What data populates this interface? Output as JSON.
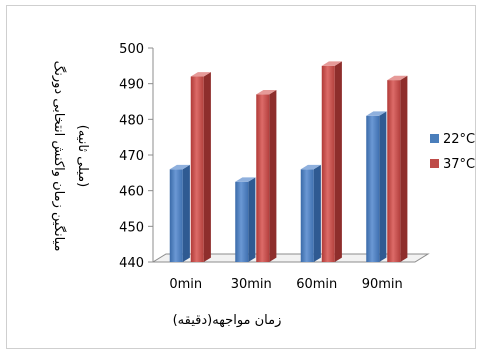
{
  "chart_data": {
    "type": "bar",
    "style": "3d-clustered-column",
    "categories": [
      "0min",
      "30min",
      "60min",
      "90min"
    ],
    "series": [
      {
        "name": "22°C",
        "color": "#4a7ebb",
        "values": [
          466,
          462.5,
          466,
          481
        ]
      },
      {
        "name": "37°C",
        "color": "#be4b48",
        "values": [
          492,
          487,
          495,
          491
        ]
      }
    ],
    "xlabel": "زمان مواجهه(دقیقه)",
    "ylabel": "میانگین زمان واکنش انتخابی دورنگ",
    "ylabel2": "(میلی ثانیه)",
    "ylim": [
      440,
      500
    ],
    "yticks": [
      440,
      450,
      460,
      470,
      480,
      490,
      500
    ],
    "grid": false,
    "legend_position": "right"
  }
}
